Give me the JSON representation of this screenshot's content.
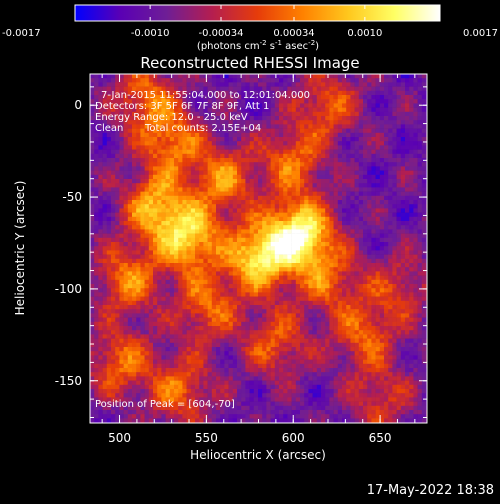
{
  "chart_data": {
    "type": "heatmap",
    "title": "Reconstructed RHESSI Image",
    "xlabel": "Heliocentric X (arcsec)",
    "ylabel": "Heliocentric Y (arcsec)",
    "xlim": [
      483,
      677
    ],
    "ylim": [
      -173,
      17
    ],
    "x_ticks": [
      500,
      550,
      600,
      650
    ],
    "y_ticks": [
      0,
      -50,
      -100,
      -150
    ],
    "colorbar": {
      "range": [
        -0.0017,
        0.0017
      ],
      "tick_values": [
        -0.0017,
        -0.001,
        -0.00034,
        0.00034,
        0.001,
        0.0017
      ],
      "tick_labels": [
        "-0.0017",
        "-0.0010",
        "-0.00034",
        "0.00034",
        "0.0010",
        "0.0017"
      ],
      "units_main": "(photons cm",
      "units_exp1": "-2",
      "units_mid1": " s",
      "units_exp2": "-1",
      "units_mid2": " asec",
      "units_exp3": "-2",
      "units_end": ")",
      "colors": [
        "#0000ff",
        "#5a00b4",
        "#6e1e96",
        "#b41e50",
        "#e63c0a",
        "#ff8200",
        "#ffc81e",
        "#ffff64",
        "#ffffff"
      ]
    },
    "annotations": [
      "7-Jan-2015 11:55:04.000 to 12:01:04.000",
      "Detectors: 3F 5F 6F 7F 8F 9F, Att 1",
      "Energy Range: 12.0 - 25.0 keV",
      "Clean",
      "Total counts: 2.15E+04"
    ],
    "peak_label": "Position of Peak = [604,-70]",
    "peak": [
      604,
      -70
    ],
    "footer": "17-May-2022 18:38",
    "sources": [
      {
        "x": 604,
        "y": -70,
        "amp": 1.0
      },
      {
        "x": 580,
        "y": -83,
        "amp": 0.85
      },
      {
        "x": 540,
        "y": -72,
        "amp": 0.8
      },
      {
        "x": 520,
        "y": -55,
        "amp": 0.65
      },
      {
        "x": 505,
        "y": -95,
        "amp": 0.55
      },
      {
        "x": 530,
        "y": -20,
        "amp": 0.55
      },
      {
        "x": 560,
        "y": -40,
        "amp": 0.55
      },
      {
        "x": 600,
        "y": -30,
        "amp": 0.5
      },
      {
        "x": 620,
        "y": 0,
        "amp": 0.45
      },
      {
        "x": 515,
        "y": 5,
        "amp": 0.5
      },
      {
        "x": 550,
        "y": -110,
        "amp": 0.5
      },
      {
        "x": 500,
        "y": -140,
        "amp": 0.5
      },
      {
        "x": 535,
        "y": -155,
        "amp": 0.5
      },
      {
        "x": 590,
        "y": -130,
        "amp": 0.45
      },
      {
        "x": 640,
        "y": -125,
        "amp": 0.45
      },
      {
        "x": 660,
        "y": -100,
        "amp": 0.35
      },
      {
        "x": 650,
        "y": -160,
        "amp": 0.35
      },
      {
        "x": 620,
        "y": -95,
        "amp": 0.45
      }
    ]
  }
}
